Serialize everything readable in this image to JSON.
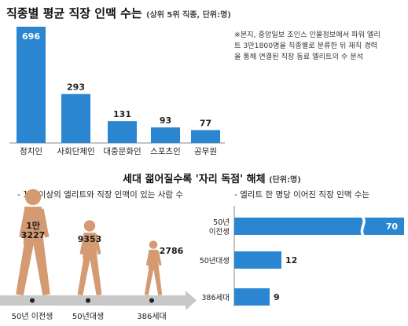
{
  "top": {
    "title": "직종별 평균 직장 인맥 수는",
    "subtitle": "(상위 5위 직종, 단위:명)",
    "note": "※본지, 중앙일보 조인스 인물정보에서 파워 엘리트 3만1800명을 직종별로 분류한 뒤 재직 경력을 통해 연결된 직장 동료 엘리트의 수 분석"
  },
  "middle": {
    "title": "세대 젊어질수록 '자리 독점' 해체",
    "unit": "(단위:명)",
    "left_caption": "- 1명 이상의 엘리트와 직장 인맥이 있는 사람 수",
    "right_caption": "- 엘리트 한 명당 이어진 직장 인맥 수는",
    "figure_labels": [
      "1만\n3227",
      "9353",
      "2786"
    ]
  },
  "colors": {
    "bar": "#2a86d1",
    "figure": "#d49a72",
    "arrow": "#bbbbbb"
  },
  "chart_data": [
    {
      "type": "bar",
      "categories": [
        "정치인",
        "사회단체인",
        "대중문화인",
        "스포츠인",
        "공무원"
      ],
      "values": [
        696,
        293,
        131,
        93,
        77
      ]
    },
    {
      "type": "bar",
      "categories": [
        "50년 이전생",
        "50년대생",
        "386세대"
      ],
      "values": [
        13227,
        9353,
        2786
      ]
    },
    {
      "type": "bar",
      "orientation": "horizontal",
      "categories": [
        "50년\n이전생",
        "50년대생",
        "386세대"
      ],
      "values": [
        70,
        12,
        9
      ]
    }
  ]
}
